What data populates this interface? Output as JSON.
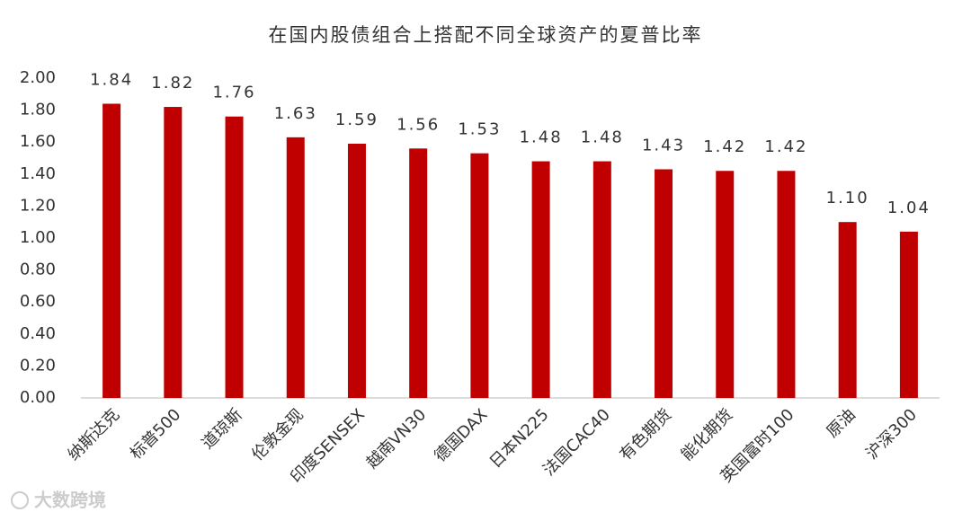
{
  "chart_data": {
    "type": "bar",
    "title": "在国内股债组合上搭配不同全球资产的夏普比率",
    "categories": [
      "纳斯达克",
      "标普500",
      "道琼斯",
      "伦敦金现",
      "印度SENSEX",
      "越南VN30",
      "德国DAX",
      "日本N225",
      "法国CAC40",
      "有色期货",
      "能化期货",
      "英国富时100",
      "原油",
      "沪深300"
    ],
    "values": [
      1.84,
      1.82,
      1.76,
      1.63,
      1.59,
      1.56,
      1.53,
      1.48,
      1.48,
      1.43,
      1.42,
      1.42,
      1.1,
      1.04
    ],
    "value_labels": [
      "1.84",
      "1.82",
      "1.76",
      "1.63",
      "1.59",
      "1.56",
      "1.53",
      "1.48",
      "1.48",
      "1.43",
      "1.42",
      "1.42",
      "1.10",
      "1.04"
    ],
    "color": "#c00000",
    "ylim": [
      0,
      2
    ],
    "yticks": [
      {
        "value": 0,
        "label": "0.00"
      },
      {
        "value": 0.2,
        "label": "0.20"
      },
      {
        "value": 0.4,
        "label": "0.40"
      },
      {
        "value": 0.6,
        "label": "0.60"
      },
      {
        "value": 0.8,
        "label": "0.80"
      },
      {
        "value": 1,
        "label": "1.00"
      },
      {
        "value": 1.2,
        "label": "1.20"
      },
      {
        "value": 1.4,
        "label": "1.40"
      },
      {
        "value": 1.6,
        "label": "1.60"
      },
      {
        "value": 1.8,
        "label": "1.80"
      },
      {
        "value": 2,
        "label": "2.00"
      }
    ],
    "grid": false
  },
  "watermark": "大数跨境"
}
